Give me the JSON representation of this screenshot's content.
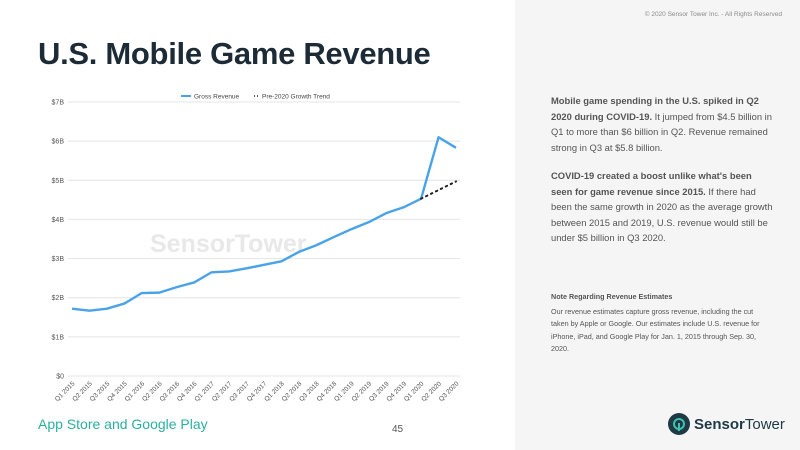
{
  "slide": {
    "title": "U.S. Mobile Game Revenue",
    "copyright": "© 2020 Sensor Tower Inc. - All Rights Reserved",
    "footer_left": "App Store and Google Play",
    "page_number": "45",
    "watermark": "SensorTower"
  },
  "insights": [
    {
      "bold": "Mobile game spending in the U.S. spiked in Q2 2020 during COVID-19.",
      "text": " It jumped from $4.5 billion in Q1 to more than $6 billion in Q2. Revenue remained strong in Q3 at $5.8 billion."
    },
    {
      "bold": "COVID-19 created a boost unlike what's been seen for game revenue since 2015.",
      "text": " If there had been the same growth in 2020 as the average growth between 2015 and 2019, U.S. revenue would still be under $5 billion in Q3 2020."
    }
  ],
  "note": {
    "title": "Note Regarding Revenue Estimates",
    "body": "Our revenue estimates capture gross revenue, including the cut taken by Apple or Google. Our estimates include U.S. revenue for iPhone, iPad, and Google Play for Jan. 1, 2015 through Sep. 30, 2020."
  },
  "logo": {
    "word1": "Sensor",
    "word2": "Tower"
  },
  "colors": {
    "accent": "#2bb0a0",
    "series": "#4aa3e8",
    "trend": "#222222",
    "grid": "#e4e4e4",
    "title": "#1c2b36",
    "right_pane": "#f5f5f5"
  },
  "chart_data": {
    "type": "line",
    "title": "",
    "xlabel": "",
    "ylabel": "",
    "ylim": [
      0,
      7
    ],
    "y_ticks": [
      {
        "value": 0,
        "label": "$0"
      },
      {
        "value": 1,
        "label": "$1B"
      },
      {
        "value": 2,
        "label": "$2B"
      },
      {
        "value": 3,
        "label": "$3B"
      },
      {
        "value": 4,
        "label": "$4B"
      },
      {
        "value": 5,
        "label": "$5B"
      },
      {
        "value": 6,
        "label": "$6B"
      },
      {
        "value": 7,
        "label": "$7B"
      }
    ],
    "grid": true,
    "legend_position": "top",
    "categories": [
      "Q1 2015",
      "Q2 2015",
      "Q3 2015",
      "Q4 2015",
      "Q1 2016",
      "Q2 2016",
      "Q3 2016",
      "Q4 2016",
      "Q1 2017",
      "Q2 2017",
      "Q3 2017",
      "Q4 2017",
      "Q1 2018",
      "Q2 2018",
      "Q3 2018",
      "Q4 2018",
      "Q1 2019",
      "Q2 2019",
      "Q3 2019",
      "Q4 2019",
      "Q1 2020",
      "Q2 2020",
      "Q3 2020"
    ],
    "series": [
      {
        "name": "Gross Revenue",
        "style": "solid",
        "values": [
          1.72,
          1.67,
          1.72,
          1.85,
          2.12,
          2.13,
          2.27,
          2.39,
          2.65,
          2.67,
          2.75,
          2.84,
          2.93,
          3.17,
          3.34,
          3.55,
          3.75,
          3.93,
          4.16,
          4.31,
          4.53,
          6.1,
          5.83
        ]
      },
      {
        "name": "Pre-2020 Growth Trend",
        "style": "dotted",
        "values": [
          null,
          null,
          null,
          null,
          null,
          null,
          null,
          null,
          null,
          null,
          null,
          null,
          null,
          null,
          null,
          null,
          null,
          null,
          null,
          null,
          4.53,
          4.75,
          4.97
        ]
      }
    ]
  }
}
